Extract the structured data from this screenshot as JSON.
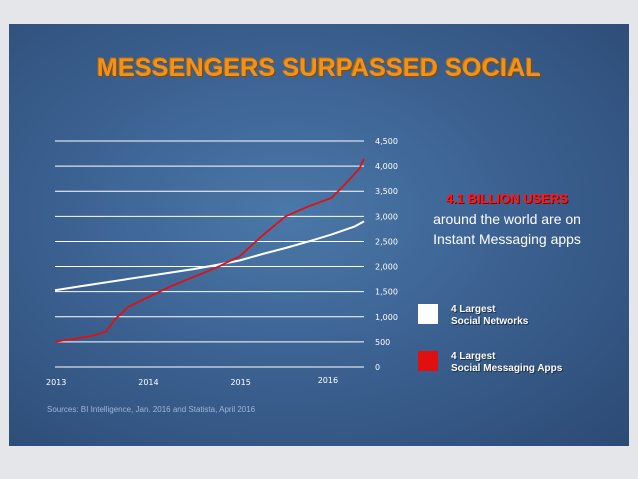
{
  "title": "MESSENGERS SURPASSED SOCIAL",
  "callout": {
    "highlight": "4.1 BILLION USERS",
    "line1": "around the world are on",
    "line2": "Instant Messaging apps"
  },
  "legend": [
    {
      "label_line1": "4 Largest",
      "label_line2": "Social Networks",
      "color": "#ffffff"
    },
    {
      "label_line1": "4 Largest",
      "label_line2": "Social Messaging Apps",
      "color": "#e01010"
    }
  ],
  "source": "Sources: BI Intelligence, Jan. 2016 and Statista, April 2016",
  "chart_data": {
    "type": "line",
    "title": "",
    "xlabel": "",
    "ylabel": "",
    "ylim": [
      0,
      4500
    ],
    "xlim": [
      2013,
      2016.35
    ],
    "y_ticks": [
      0,
      500,
      1000,
      1500,
      2000,
      2500,
      3000,
      3500,
      4000,
      4500
    ],
    "y_tick_labels": [
      "0",
      "500",
      "1,000",
      "1,500",
      "2,000",
      "2,500",
      "3,000",
      "3,500",
      "4,000",
      "4,500"
    ],
    "x_ticks": [
      2013,
      2014,
      2015,
      2016
    ],
    "x_tick_labels": [
      "2013",
      "2014",
      "2015",
      "2016"
    ],
    "grid": true,
    "y_axis_side": "right",
    "series": [
      {
        "name": "4 Largest Social Networks",
        "color": "#ffffff",
        "x": [
          2013.0,
          2013.25,
          2013.5,
          2013.75,
          2014.0,
          2014.25,
          2014.5,
          2014.75,
          2015.0,
          2015.25,
          2015.5,
          2015.75,
          2016.0,
          2016.25,
          2016.35
        ],
        "y": [
          1530,
          1600,
          1670,
          1740,
          1810,
          1880,
          1950,
          2030,
          2120,
          2250,
          2370,
          2500,
          2640,
          2800,
          2900
        ]
      },
      {
        "name": "4 Largest Social Messaging Apps",
        "color": "#e01010",
        "x": [
          2013.0,
          2013.2,
          2013.4,
          2013.55,
          2013.65,
          2013.8,
          2014.0,
          2014.25,
          2014.5,
          2014.75,
          2015.0,
          2015.25,
          2015.5,
          2015.75,
          2016.0,
          2016.15,
          2016.3,
          2016.35
        ],
        "y": [
          500,
          560,
          620,
          700,
          950,
          1200,
          1380,
          1600,
          1790,
          1980,
          2200,
          2620,
          3000,
          3200,
          3370,
          3650,
          3950,
          4150
        ]
      }
    ]
  }
}
